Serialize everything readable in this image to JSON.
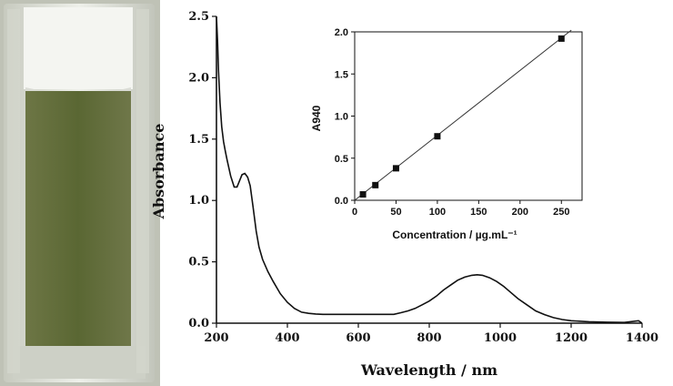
{
  "colors": {
    "background": "#ffffff",
    "liquid": "#5a6733",
    "cuvette_frame": "#b9bdb2",
    "cuvette_glass": "#e7e9e3"
  },
  "chart_data": [
    {
      "type": "line",
      "xlabel": "Wavelength / nm",
      "ylabel": "Absorbance",
      "xlim": [
        200,
        1400
      ],
      "ylim": [
        0,
        2.5
      ],
      "xticks": [
        "200",
        "400",
        "600",
        "800",
        "1000",
        "1200",
        "1400"
      ],
      "yticks": [
        "0.0",
        "0.5",
        "1.0",
        "1.5",
        "2.0",
        "2.5"
      ],
      "grid": false,
      "series": [
        {
          "x": [
            200,
            203,
            206,
            210,
            215,
            220,
            225,
            230,
            240,
            250,
            258,
            265,
            272,
            280,
            288,
            295,
            303,
            312,
            320,
            330,
            345,
            360,
            380,
            400,
            420,
            440,
            460,
            480,
            500,
            550,
            600,
            650,
            700,
            720,
            740,
            760,
            780,
            800,
            820,
            840,
            860,
            880,
            900,
            920,
            935,
            950,
            970,
            990,
            1010,
            1030,
            1050,
            1075,
            1100,
            1125,
            1150,
            1175,
            1200,
            1250,
            1300,
            1350,
            1390,
            1400
          ],
          "y": [
            2.5,
            2.3,
            2.05,
            1.8,
            1.6,
            1.48,
            1.4,
            1.33,
            1.2,
            1.11,
            1.11,
            1.16,
            1.21,
            1.22,
            1.19,
            1.12,
            0.95,
            0.75,
            0.62,
            0.52,
            0.42,
            0.34,
            0.24,
            0.17,
            0.12,
            0.09,
            0.08,
            0.075,
            0.072,
            0.072,
            0.072,
            0.072,
            0.072,
            0.085,
            0.1,
            0.12,
            0.15,
            0.18,
            0.22,
            0.27,
            0.31,
            0.35,
            0.375,
            0.39,
            0.395,
            0.39,
            0.37,
            0.34,
            0.3,
            0.25,
            0.2,
            0.15,
            0.1,
            0.07,
            0.045,
            0.03,
            0.02,
            0.012,
            0.008,
            0.006,
            0.02,
            0.0
          ]
        }
      ]
    },
    {
      "type": "scatter",
      "xlabel": "Concentration / µg.mL⁻¹",
      "ylabel": "A940",
      "xlim": [
        0,
        275
      ],
      "ylim": [
        0,
        2.0
      ],
      "xticks": [
        "0",
        "50",
        "100",
        "150",
        "200",
        "250"
      ],
      "yticks": [
        "0.0",
        "0.5",
        "1.0",
        "1.5",
        "2.0"
      ],
      "grid": false,
      "points": {
        "x": [
          10,
          25,
          50,
          100,
          250
        ],
        "y": [
          0.07,
          0.18,
          0.38,
          0.76,
          1.92
        ]
      },
      "fit_line": {
        "x": [
          0,
          262
        ],
        "y": [
          0.0,
          2.02
        ]
      }
    }
  ]
}
